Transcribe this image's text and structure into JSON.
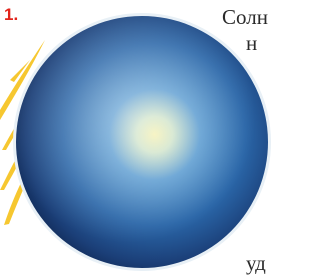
{
  "marker": "1.",
  "text_fragments": [
    "Солн",
    "н",
    "уд"
  ]
}
